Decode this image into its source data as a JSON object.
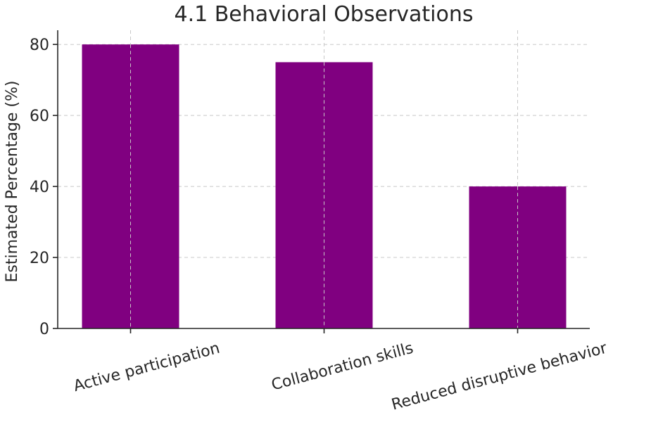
{
  "chart_data": {
    "type": "bar",
    "title": "4.1 Behavioral Observations",
    "xlabel": "",
    "ylabel": "Estimated Percentage (%)",
    "categories": [
      "Active participation",
      "Collaboration skills",
      "Reduced disruptive behavior"
    ],
    "values": [
      80,
      75,
      40
    ],
    "ylim": [
      0,
      84
    ],
    "yticks": [
      "0",
      "20",
      "40",
      "60",
      "80"
    ],
    "grid": true,
    "bar_color": "#800080"
  }
}
